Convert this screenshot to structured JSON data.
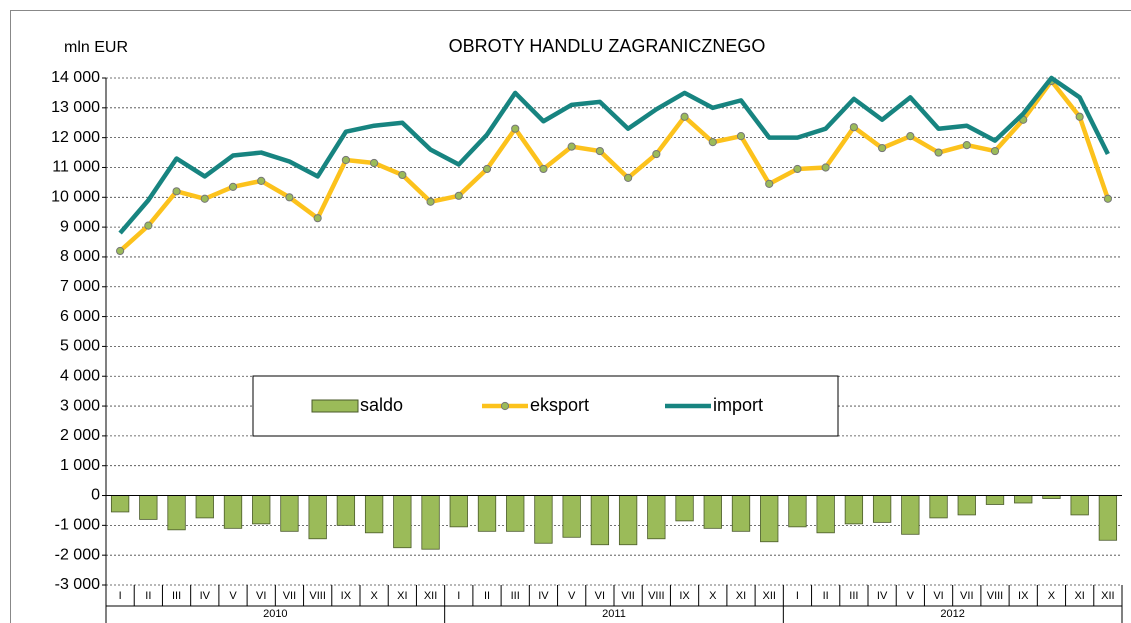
{
  "chart_data": {
    "type": "bar-line",
    "title": "OBROTY HANDLU ZAGRANICZNEGO",
    "y_label": "mln EUR",
    "categories": [
      "I",
      "II",
      "III",
      "IV",
      "V",
      "VI",
      "VII",
      "VIII",
      "IX",
      "X",
      "XI",
      "XII",
      "I",
      "II",
      "III",
      "IV",
      "V",
      "VI",
      "VII",
      "VIII",
      "IX",
      "X",
      "XI",
      "XII",
      "I",
      "II",
      "III",
      "IV",
      "V",
      "VI",
      "VII",
      "VIII",
      "IX",
      "X",
      "XI",
      "XII"
    ],
    "year_groups": [
      "2010",
      "2011",
      "2012"
    ],
    "series": [
      {
        "name": "saldo",
        "type": "bar",
        "color": "#9bbb59",
        "values": [
          -550,
          -800,
          -1150,
          -750,
          -1100,
          -950,
          -1200,
          -1450,
          -1000,
          -1250,
          -1750,
          -1800,
          -1050,
          -1200,
          -1200,
          -1600,
          -1400,
          -1650,
          -1650,
          -1450,
          -850,
          -1100,
          -1200,
          -1550,
          -1050,
          -1250,
          -950,
          -900,
          -1300,
          -750,
          -650,
          -300,
          -250,
          -100,
          -650,
          -1500
        ]
      },
      {
        "name": "eksport",
        "type": "line",
        "color": "#fcc21c",
        "marker_color": "#9bbb59",
        "values": [
          8200,
          9050,
          10200,
          9950,
          10350,
          10550,
          10000,
          9300,
          11250,
          11150,
          10750,
          9850,
          10050,
          10950,
          12300,
          10950,
          11700,
          11550,
          10650,
          11450,
          12700,
          11850,
          12050,
          10450,
          10950,
          11000,
          12350,
          11650,
          12050,
          11500,
          11750,
          11550,
          12600,
          13900,
          12700,
          9950
        ]
      },
      {
        "name": "import",
        "type": "line",
        "color": "#178480",
        "values": [
          8800,
          9900,
          11300,
          10700,
          11400,
          11500,
          11200,
          10700,
          12200,
          12400,
          12500,
          11600,
          11100,
          12100,
          13500,
          12550,
          13100,
          13200,
          12300,
          12950,
          13500,
          13000,
          13250,
          12000,
          12000,
          12300,
          13300,
          12600,
          13350,
          12300,
          12400,
          11900,
          12800,
          14000,
          13350,
          11450
        ]
      }
    ],
    "ylim": [
      -3000,
      14000
    ],
    "yticks": [
      {
        "value": 14000,
        "label": "14 000"
      },
      {
        "value": 13000,
        "label": "13 000"
      },
      {
        "value": 12000,
        "label": "12 000"
      },
      {
        "value": 11000,
        "label": "11 000"
      },
      {
        "value": 10000,
        "label": "10 000"
      },
      {
        "value": 9000,
        "label": "9 000"
      },
      {
        "value": 8000,
        "label": "8 000"
      },
      {
        "value": 7000,
        "label": "7 000"
      },
      {
        "value": 6000,
        "label": "6 000"
      },
      {
        "value": 5000,
        "label": "5 000"
      },
      {
        "value": 4000,
        "label": "4 000"
      },
      {
        "value": 3000,
        "label": "3 000"
      },
      {
        "value": 2000,
        "label": "2 000"
      },
      {
        "value": 1000,
        "label": "1 000"
      },
      0,
      {
        "value": -1000,
        "label": "-1 000"
      },
      {
        "value": -2000,
        "label": "-2 000"
      },
      {
        "value": -3000,
        "label": "-3 000"
      }
    ],
    "grid": true,
    "legend": "center"
  }
}
